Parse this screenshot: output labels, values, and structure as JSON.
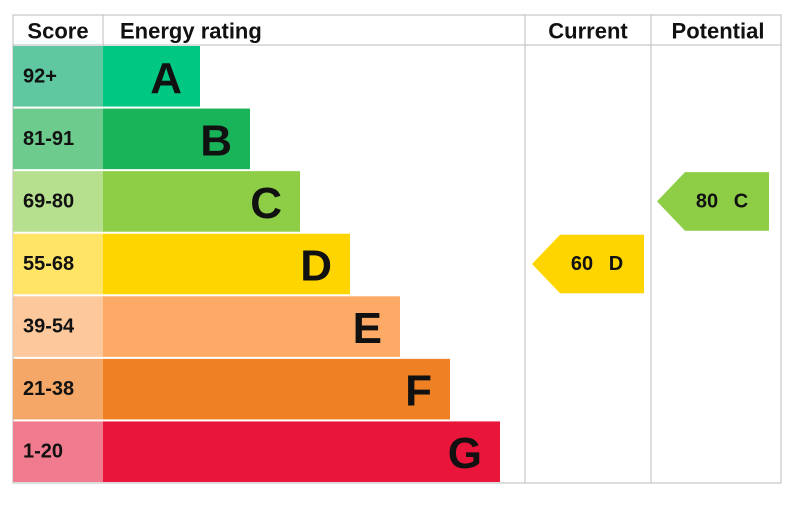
{
  "headers": {
    "score": "Score",
    "rating": "Energy rating",
    "current": "Current",
    "potential": "Potential"
  },
  "bands": [
    {
      "score": "92+",
      "letter": "A",
      "color": "#00c781",
      "score_color": "#5fc8a0"
    },
    {
      "score": "81-91",
      "letter": "B",
      "color": "#19b459",
      "score_color": "#6dcb8d"
    },
    {
      "score": "69-80",
      "letter": "C",
      "color": "#8dce46",
      "score_color": "#b6df8e"
    },
    {
      "score": "55-68",
      "letter": "D",
      "color": "#ffd500",
      "score_color": "#ffe466"
    },
    {
      "score": "39-54",
      "letter": "E",
      "color": "#fcaa65",
      "score_color": "#fdc99c"
    },
    {
      "score": "21-38",
      "letter": "F",
      "color": "#ef8023",
      "score_color": "#f4a766"
    },
    {
      "score": "1-20",
      "letter": "G",
      "color": "#e9153b",
      "score_color": "#f07a8e"
    }
  ],
  "current": {
    "value": 60,
    "letter": "D"
  },
  "potential": {
    "value": 80,
    "letter": "C"
  }
}
